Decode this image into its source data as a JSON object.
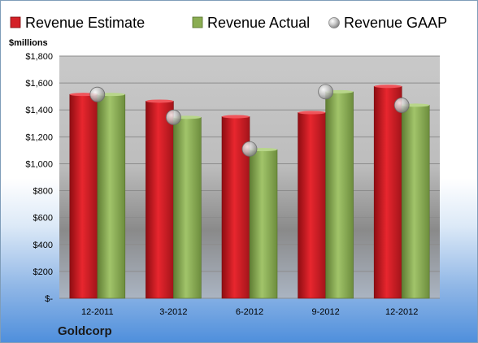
{
  "chart_data": {
    "type": "bar",
    "categories": [
      "12-2011",
      "3-2012",
      "6-2012",
      "9-2012",
      "12-2012"
    ],
    "series": [
      {
        "name": "Revenue Estimate",
        "kind": "bar",
        "color": "#d42128",
        "values": [
          1515,
          1465,
          1350,
          1380,
          1575
        ]
      },
      {
        "name": "Revenue Actual",
        "kind": "bar",
        "color": "#8aad52",
        "values": [
          1515,
          1345,
          1105,
          1535,
          1435
        ]
      },
      {
        "name": "Revenue GAAP",
        "kind": "marker",
        "color": "#b8b8b8",
        "values": [
          1515,
          1345,
          1110,
          1535,
          1435
        ]
      }
    ],
    "ylabel": "$millions",
    "ylim": [
      0,
      1800
    ],
    "yticks": [
      0,
      200,
      400,
      600,
      800,
      1000,
      1200,
      1400,
      1600,
      1800
    ],
    "ytick_labels": [
      "$-",
      "$200",
      "$400",
      "$600",
      "$800",
      "$1,000",
      "$1,200",
      "$1,400",
      "$1,600",
      "$1,800"
    ],
    "grid": true,
    "legend_position": "top"
  },
  "company": "Goldcorp"
}
